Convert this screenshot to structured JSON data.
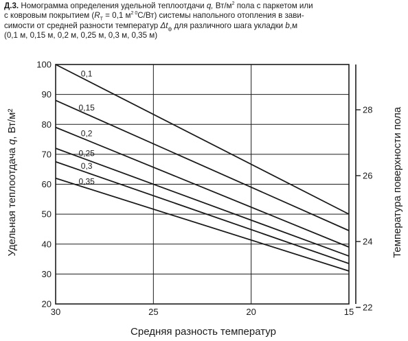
{
  "caption": {
    "label": "Д.3.",
    "line1": "Номограмма определения удельной теплоотдачи",
    "q": "q,",
    "unit_q": "Вт/м",
    "sup2": "2",
    "line1_tail": "пола с паркетом или",
    "line2_head": "с ковровым покрытием (",
    "R": "R",
    "R_sub": "T",
    "line2_mid": "= 0,1 м",
    "line2_sup": "2 0",
    "line2_tail": "С/Вт) системы напольного отопления в зави-",
    "line3_head": "симости от средней разности температур",
    "dt": "Δt",
    "dt_sub": "ф",
    "line3_tail": "для различного шага укладки",
    "b": "b",
    "line3_end": ",м",
    "line4": "(0,1 м, 0,15 м, 0,2 м, 0,25 м, 0,3 м, 0,35 м)"
  },
  "chart_data": {
    "type": "line",
    "xlabel": "Средняя разность температур",
    "ylabel_prefix": "Удельная теплоотдача ",
    "ylabel_var": "q",
    "ylabel_suffix": ", Вт/м²",
    "ylabel_right": "Температура поверхности пола",
    "xlim": [
      30,
      15
    ],
    "ylim": [
      20,
      100
    ],
    "x_ticks": [
      "30",
      "25",
      "20",
      "15"
    ],
    "y_ticks": [
      "20",
      "30",
      "40",
      "50",
      "60",
      "70",
      "80",
      "90",
      "100"
    ],
    "y_right_ticks": [
      "22",
      "24",
      "26",
      "28"
    ],
    "y_right_values": [
      22,
      24,
      26,
      28
    ],
    "grid": true,
    "series": [
      {
        "name": "0,1",
        "x": [
          30,
          15
        ],
        "y": [
          100,
          50
        ]
      },
      {
        "name": "0,15",
        "x": [
          30,
          15
        ],
        "y": [
          88,
          44.5
        ]
      },
      {
        "name": "0,2",
        "x": [
          30,
          15
        ],
        "y": [
          79,
          39
        ]
      },
      {
        "name": "0,25",
        "x": [
          30,
          15
        ],
        "y": [
          72,
          36
        ]
      },
      {
        "name": "0,3",
        "x": [
          30,
          15
        ],
        "y": [
          67.5,
          33.5
        ]
      },
      {
        "name": "0,35",
        "x": [
          30,
          15
        ],
        "y": [
          62,
          31
        ]
      }
    ]
  }
}
